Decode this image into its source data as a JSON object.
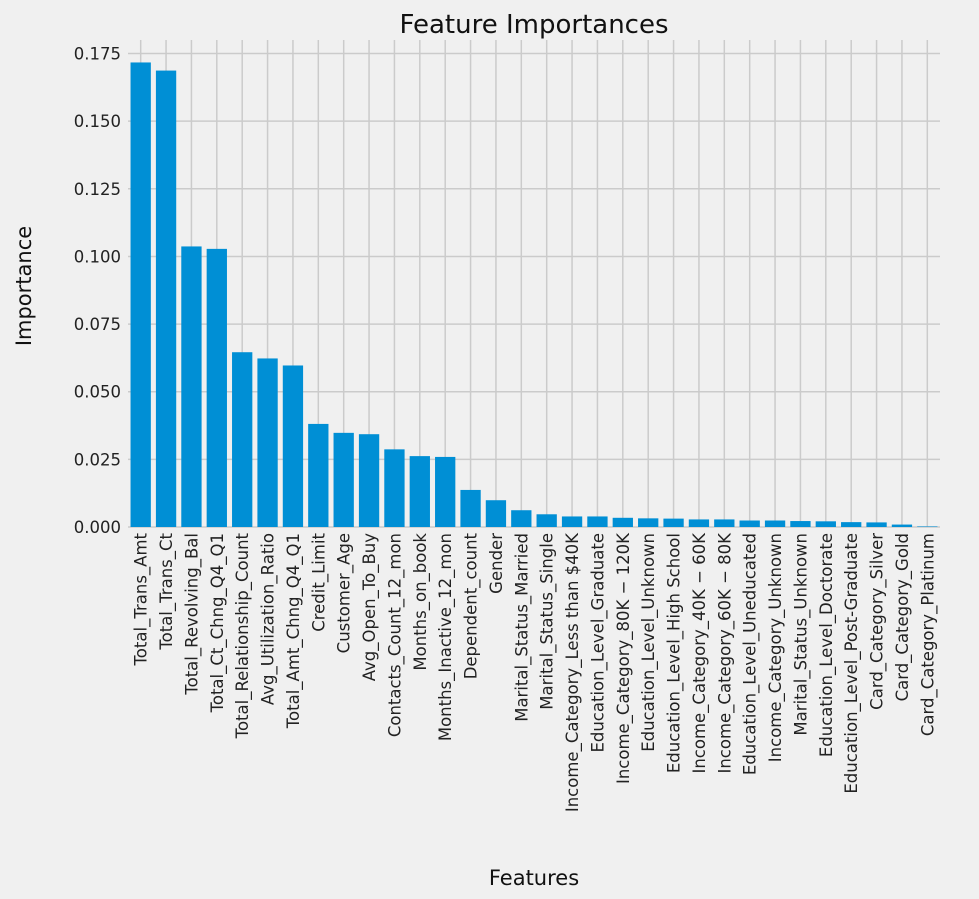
{
  "chart_data": {
    "type": "bar",
    "title": "Feature Importances",
    "xlabel": "Features",
    "ylabel": "Importance",
    "ylim": [
      0,
      0.18
    ],
    "yticks": [
      "0.000",
      "0.025",
      "0.050",
      "0.075",
      "0.100",
      "0.125",
      "0.150",
      "0.175"
    ],
    "ytick_values": [
      0,
      0.025,
      0.05,
      0.075,
      0.1,
      0.125,
      0.15,
      0.175
    ],
    "grid": true,
    "colors": {
      "background": "#f0f0f0",
      "bar": "#008fd5",
      "grid": "#cbcbcb",
      "text": "#111111"
    },
    "categories": [
      "Total_Trans_Amt",
      "Total_Trans_Ct",
      "Total_Revolving_Bal",
      "Total_Ct_Chng_Q4_Q1",
      "Total_Relationship_Count",
      "Avg_Utilization_Ratio",
      "Total_Amt_Chng_Q4_Q1",
      "Credit_Limit",
      "Customer_Age",
      "Avg_Open_To_Buy",
      "Contacts_Count_12_mon",
      "Months_on_book",
      "Months_Inactive_12_mon",
      "Dependent_count",
      "Gender",
      "Marital_Status_Married",
      "Marital_Status_Single",
      "Income_Category_Less than $40K",
      "Education_Level_Graduate",
      "Income_Category_80K − 120K",
      "Education_Level_Unknown",
      "Education_Level_High School",
      "Income_Category_40K − 60K",
      "Income_Category_60K − 80K",
      "Education_Level_Uneducated",
      "Income_Category_Unknown",
      "Marital_Status_Unknown",
      "Education_Level_Doctorate",
      "Education_Level_Post-Graduate",
      "Card_Category_Silver",
      "Card_Category_Gold",
      "Card_Category_Platinum"
    ],
    "values": [
      0.1717,
      0.1687,
      0.1037,
      0.1028,
      0.0646,
      0.0623,
      0.0597,
      0.0381,
      0.0348,
      0.0343,
      0.0287,
      0.0262,
      0.0259,
      0.0137,
      0.0099,
      0.0062,
      0.0047,
      0.0039,
      0.0039,
      0.0034,
      0.0032,
      0.0031,
      0.0028,
      0.0028,
      0.0024,
      0.0024,
      0.0022,
      0.0021,
      0.0018,
      0.0017,
      0.0009,
      0.0002
    ]
  }
}
